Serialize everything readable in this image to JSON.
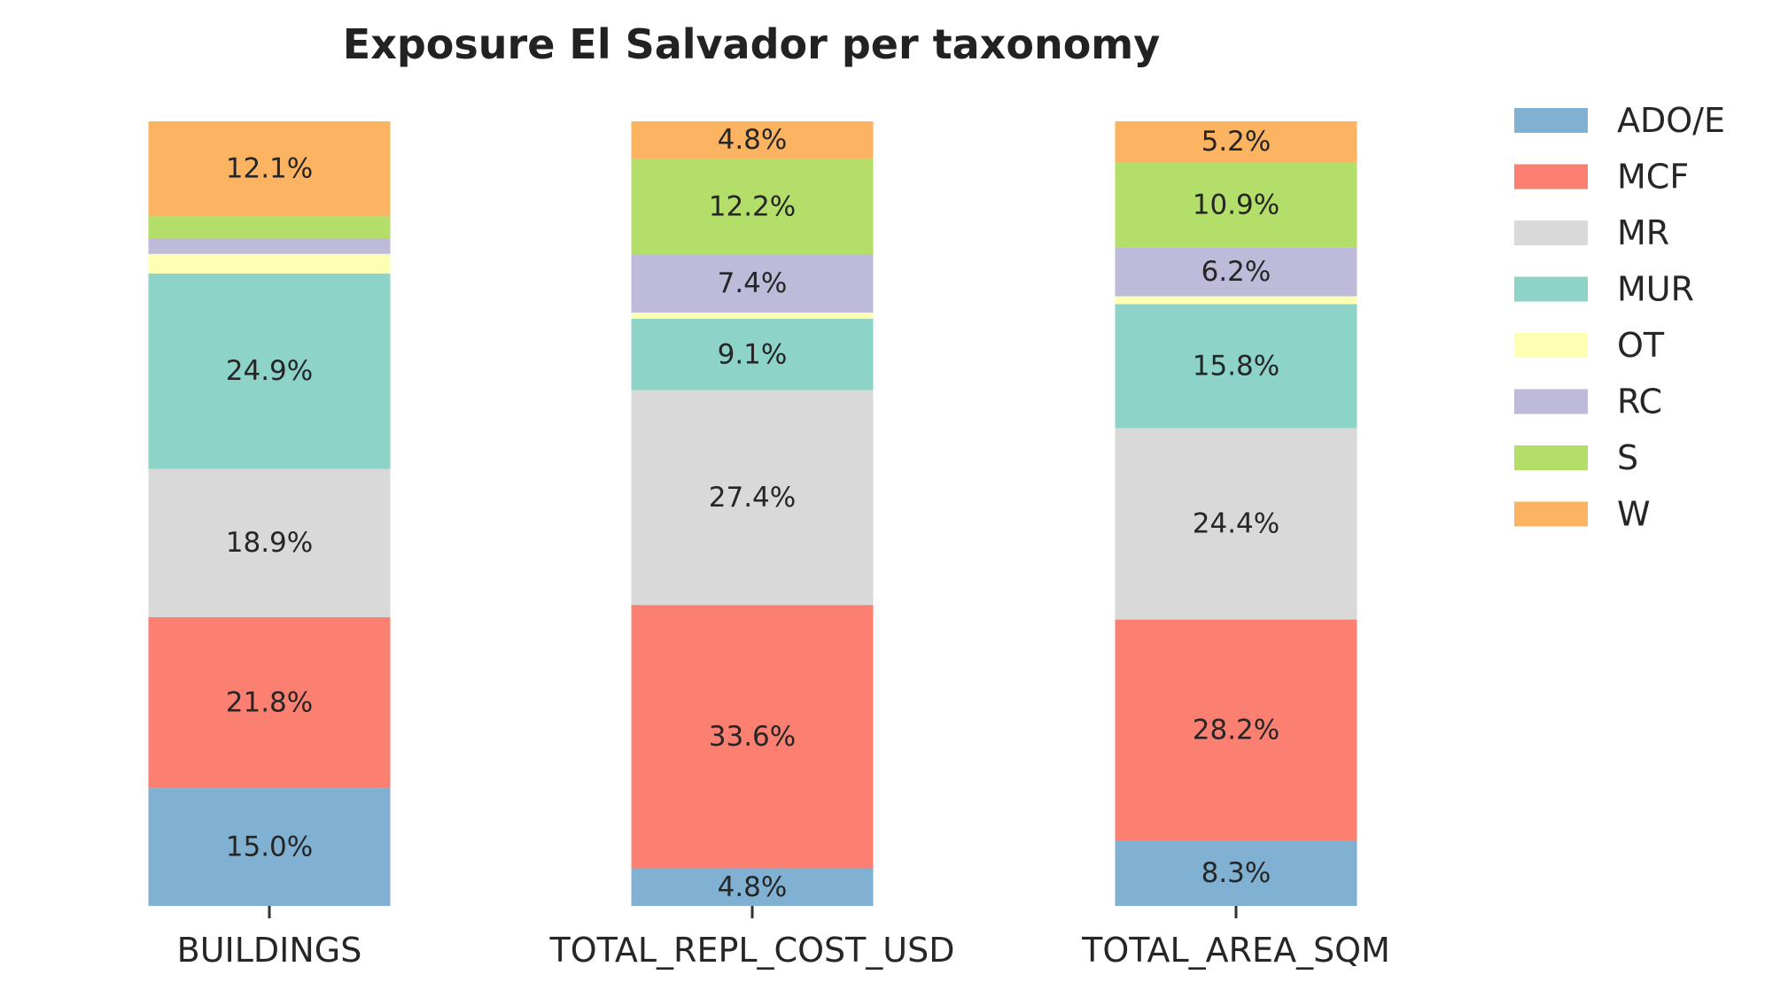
{
  "chart_data": {
    "type": "bar",
    "stacked": true,
    "title": "Exposure El Salvador per taxonomy",
    "xlabel": "",
    "ylabel": "",
    "ylim": [
      0,
      100
    ],
    "grid": false,
    "legend_position": "right",
    "categories": [
      "BUILDINGS",
      "TOTAL_REPL_COST_USD",
      "TOTAL_AREA_SQM"
    ],
    "series": [
      {
        "name": "ADO/E",
        "color": "#80b1d3",
        "values": [
          15.0,
          4.8,
          8.3
        ],
        "labels": [
          "15.0%",
          "4.8%",
          "8.3%"
        ]
      },
      {
        "name": "MCF",
        "color": "#fb8072",
        "values": [
          21.8,
          33.6,
          28.2
        ],
        "labels": [
          "21.8%",
          "33.6%",
          "28.2%"
        ]
      },
      {
        "name": "MR",
        "color": "#d9d9d9",
        "values": [
          18.9,
          27.4,
          24.4
        ],
        "labels": [
          "18.9%",
          "27.4%",
          "24.4%"
        ]
      },
      {
        "name": "MUR",
        "color": "#8dd3c7",
        "values": [
          24.9,
          9.1,
          15.8
        ],
        "labels": [
          "24.9%",
          "9.1%",
          "15.8%"
        ]
      },
      {
        "name": "OT",
        "color": "#ffffb3",
        "values": [
          2.5,
          0.8,
          1.0
        ],
        "labels": [
          "",
          "",
          ""
        ]
      },
      {
        "name": "RC",
        "color": "#bebada",
        "values": [
          2.0,
          7.4,
          6.2
        ],
        "labels": [
          "",
          "7.4%",
          "6.2%"
        ]
      },
      {
        "name": "S",
        "color": "#b3de69",
        "values": [
          2.8,
          12.2,
          10.9
        ],
        "labels": [
          "",
          "12.2%",
          "10.9%"
        ]
      },
      {
        "name": "W",
        "color": "#fdb462",
        "values": [
          12.1,
          4.8,
          5.2
        ],
        "labels": [
          "12.1%",
          "4.8%",
          "5.2%"
        ]
      }
    ]
  }
}
